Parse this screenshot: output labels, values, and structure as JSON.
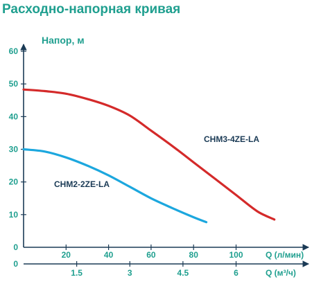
{
  "chart_data": {
    "type": "line",
    "title": "Расходно-напорная кривая",
    "ylabel": "Напор, м",
    "ylim": [
      0,
      60
    ],
    "yticks": [
      0,
      10,
      20,
      30,
      40,
      50,
      60
    ],
    "xlabel_primary": "Q (л/мин)",
    "xlim_primary": [
      0,
      133
    ],
    "xticks_primary": [
      20,
      40,
      60,
      80,
      100
    ],
    "xlabel_secondary": "Q (м³/ч)",
    "xticks_secondary": [
      "1.5",
      "3",
      "4.5",
      "6"
    ],
    "secondary_zero": "0",
    "grid": false,
    "colors": {
      "accent": "#1f9f8f",
      "axis": "#1a3a55"
    },
    "series": [
      {
        "name": "CHM3-4ZE-LA",
        "color": "#d42a2a",
        "x": [
          0,
          10,
          20,
          30,
          40,
          50,
          60,
          70,
          80,
          90,
          100,
          110,
          118
        ],
        "y": [
          48.3,
          47.8,
          47.0,
          45.4,
          43.3,
          40.3,
          35.7,
          31.0,
          26.0,
          21.0,
          16.0,
          11.0,
          8.5
        ]
      },
      {
        "name": "CHM2-2ZE-LA",
        "color": "#1ca7de",
        "x": [
          0,
          10,
          20,
          30,
          40,
          50,
          60,
          70,
          80,
          86
        ],
        "y": [
          30.0,
          29.3,
          27.5,
          25.0,
          22.0,
          18.5,
          15.0,
          12.0,
          9.2,
          7.7
        ]
      }
    ]
  }
}
